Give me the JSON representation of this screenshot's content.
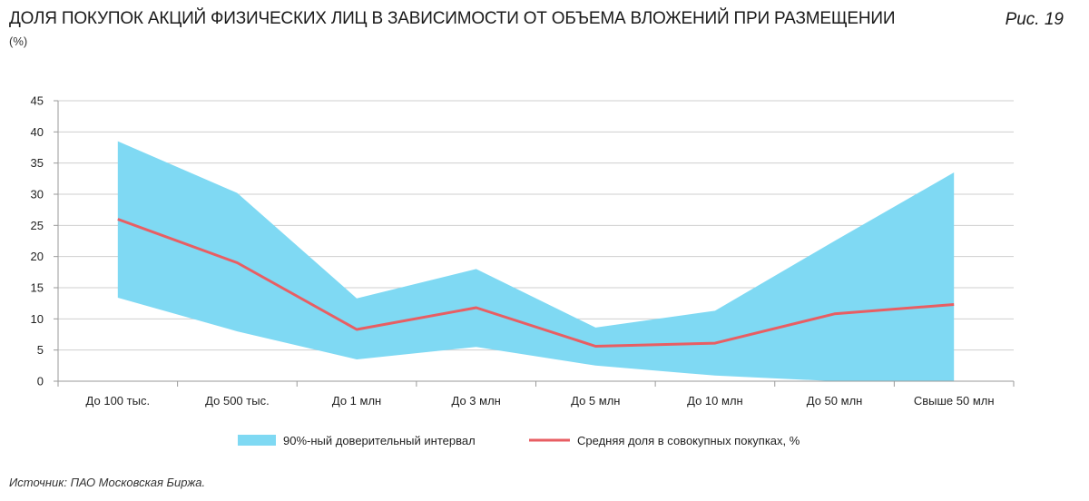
{
  "header": {
    "title": "ДОЛЯ ПОКУПОК АКЦИЙ ФИЗИЧЕСКИХ ЛИЦ В ЗАВИСИМОСТИ ОТ ОБЪЕМА ВЛОЖЕНИЙ ПРИ РАЗМЕЩЕНИИ",
    "unit": "(%)",
    "figure_label": "Рис. 19"
  },
  "footer": {
    "source": "Источник: ПАО Московская Биржа."
  },
  "colors": {
    "band": "#7fd9f3",
    "line": "#e85e63",
    "grid": "#cfcfcf",
    "axis": "#9a9a9a"
  },
  "chart_data": {
    "type": "area",
    "categories": [
      "До 100 тыс.",
      "До 500 тыс.",
      "До 1 млн",
      "До 3 млн",
      "До 5 млн",
      "До 10 млн",
      "До 50 млн",
      "Свыше 50 млн"
    ],
    "ylim": [
      0,
      45
    ],
    "yticks": [
      0,
      5,
      10,
      15,
      20,
      25,
      30,
      35,
      40,
      45
    ],
    "grid": true,
    "legend_position": "bottom",
    "series": [
      {
        "name": "90%-ный доверительный интервал",
        "kind": "band",
        "upper": [
          38.5,
          30.2,
          13.3,
          18.0,
          8.6,
          11.3,
          22.5,
          33.5
        ],
        "lower": [
          13.4,
          8.0,
          3.5,
          5.5,
          2.5,
          0.9,
          0.0,
          0.0
        ]
      },
      {
        "name": "Средняя доля в совокупных покупках, %",
        "kind": "line",
        "values": [
          26.0,
          19.0,
          8.3,
          11.8,
          5.6,
          6.1,
          10.8,
          12.3
        ]
      }
    ]
  }
}
